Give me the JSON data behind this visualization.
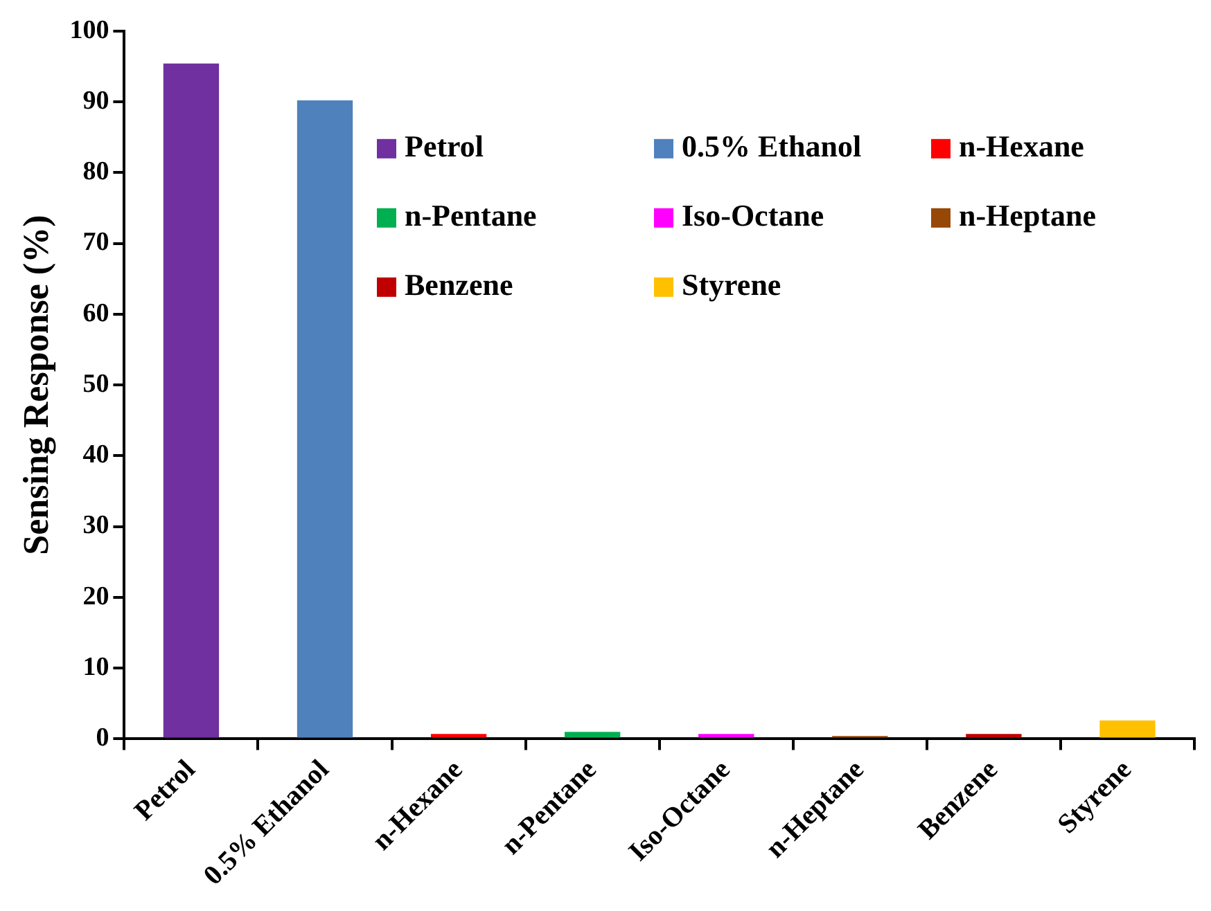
{
  "chart_data": {
    "type": "bar",
    "ylabel": "Sensing Response (%)",
    "categories": [
      "Petrol",
      "0.5% Ethanol",
      "n-Hexane",
      "n-Pentane",
      "Iso-Octane",
      "n-Heptane",
      "Benzene",
      "Styrene"
    ],
    "series": [
      {
        "name": "Petrol",
        "color": "#7030a0",
        "values": [
          95.4,
          null,
          null,
          null,
          null,
          null,
          null,
          null
        ]
      },
      {
        "name": "0.5% Ethanol",
        "color": "#4f81bd",
        "values": [
          null,
          90.2,
          null,
          null,
          null,
          null,
          null,
          null
        ]
      },
      {
        "name": "n-Hexane",
        "color": "#ff0000",
        "values": [
          null,
          null,
          0.7,
          null,
          null,
          null,
          null,
          null
        ]
      },
      {
        "name": "n-Pentane",
        "color": "#00b050",
        "values": [
          null,
          null,
          null,
          1.0,
          null,
          null,
          null,
          null
        ]
      },
      {
        "name": "Iso-Octane",
        "color": "#ff00ff",
        "values": [
          null,
          null,
          null,
          null,
          0.7,
          null,
          null,
          null
        ]
      },
      {
        "name": "n-Heptane",
        "color": "#974706",
        "values": [
          null,
          null,
          null,
          null,
          null,
          0.4,
          null,
          null
        ]
      },
      {
        "name": "Benzene",
        "color": "#c00000",
        "values": [
          null,
          null,
          null,
          null,
          null,
          null,
          0.7,
          null
        ]
      },
      {
        "name": "Styrene",
        "color": "#ffc000",
        "values": [
          null,
          null,
          null,
          null,
          null,
          null,
          null,
          2.6
        ]
      }
    ],
    "ylim": [
      0,
      100
    ],
    "yticks": [
      0,
      10,
      20,
      30,
      40,
      50,
      60,
      70,
      80,
      90,
      100
    ],
    "legend": "top right"
  }
}
